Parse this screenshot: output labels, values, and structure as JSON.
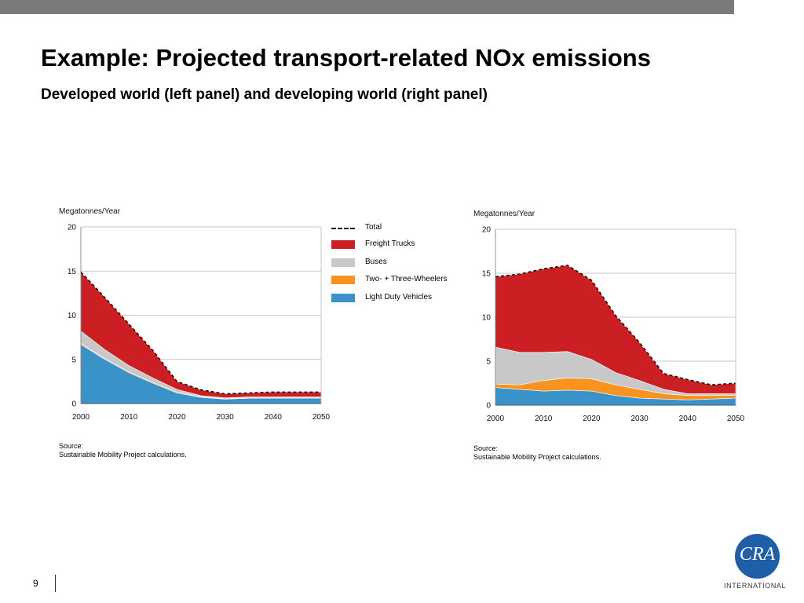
{
  "slide": {
    "title": "Example: Projected transport-related NOx emissions",
    "subtitle": "Developed world (left panel) and developing world (right panel)",
    "page_number": "9",
    "logo_mark": "CRA",
    "logo_caption": "INTERNATIONAL"
  },
  "legend": {
    "items": [
      {
        "label": "Total",
        "style": "dashed-line",
        "color": "#111111"
      },
      {
        "label": "Freight Trucks",
        "color": "#cc1f24"
      },
      {
        "label": "Buses",
        "color": "#c8c8c8"
      },
      {
        "label": "Two- + Three-Wheelers",
        "color": "#f7931e"
      },
      {
        "label": "Light Duty Vehicles",
        "color": "#3a93c8"
      }
    ]
  },
  "chart_data": [
    {
      "type": "area",
      "stacked": true,
      "ylabel": "Megatonnes/Year",
      "ylim": [
        0,
        20
      ],
      "yticks": [
        0,
        5,
        10,
        15,
        20
      ],
      "xlim": [
        2000,
        2050
      ],
      "xticks": [
        2000,
        2010,
        2020,
        2030,
        2040,
        2050
      ],
      "grid": true,
      "source": [
        "Source:",
        "Sustainable Mobility Project calculations."
      ],
      "x": [
        2000,
        2005,
        2010,
        2015,
        2020,
        2025,
        2030,
        2035,
        2040,
        2045,
        2050
      ],
      "series": [
        {
          "name": "Light Duty Vehicles",
          "values": [
            6.7,
            5.0,
            3.5,
            2.3,
            1.2,
            0.7,
            0.5,
            0.6,
            0.6,
            0.6,
            0.6
          ]
        },
        {
          "name": "Two- + Three-Wheelers",
          "values": [
            0.1,
            0.1,
            0.1,
            0.1,
            0.1,
            0.05,
            0.05,
            0.05,
            0.05,
            0.05,
            0.05
          ]
        },
        {
          "name": "Buses",
          "values": [
            1.4,
            1.0,
            0.7,
            0.5,
            0.3,
            0.15,
            0.1,
            0.1,
            0.1,
            0.1,
            0.1
          ]
        },
        {
          "name": "Freight Trucks",
          "values": [
            6.7,
            5.9,
            4.7,
            3.1,
            0.9,
            0.65,
            0.45,
            0.45,
            0.55,
            0.55,
            0.55
          ]
        }
      ],
      "total": [
        14.9,
        12.0,
        9.0,
        6.0,
        2.5,
        1.55,
        1.1,
        1.2,
        1.3,
        1.3,
        1.3
      ],
      "colors": {
        "Light Duty Vehicles": "#3a93c8",
        "Two- + Three-Wheelers": "#f7931e",
        "Buses": "#c8c8c8",
        "Freight Trucks": "#cc1f24"
      }
    },
    {
      "type": "area",
      "stacked": true,
      "ylabel": "Megatonnes/Year",
      "ylim": [
        0,
        20
      ],
      "yticks": [
        0,
        5,
        10,
        15,
        20
      ],
      "xlim": [
        2000,
        2050
      ],
      "xticks": [
        2000,
        2010,
        2020,
        2030,
        2040,
        2050
      ],
      "grid": true,
      "source": [
        "Source:",
        "Sustainable Mobility Project calculations."
      ],
      "x": [
        2000,
        2005,
        2010,
        2015,
        2020,
        2025,
        2030,
        2035,
        2040,
        2045,
        2050
      ],
      "series": [
        {
          "name": "Light Duty Vehicles",
          "values": [
            2.0,
            1.8,
            1.6,
            1.7,
            1.6,
            1.1,
            0.8,
            0.7,
            0.6,
            0.7,
            0.8
          ]
        },
        {
          "name": "Two- + Three-Wheelers",
          "values": [
            0.4,
            0.5,
            1.2,
            1.4,
            1.4,
            1.2,
            1.0,
            0.6,
            0.5,
            0.4,
            0.3
          ]
        },
        {
          "name": "Buses",
          "values": [
            4.2,
            3.7,
            3.2,
            3.0,
            2.2,
            1.4,
            1.0,
            0.5,
            0.2,
            0.2,
            0.2
          ]
        },
        {
          "name": "Freight Trucks",
          "values": [
            8.0,
            8.9,
            9.5,
            9.8,
            9.0,
            6.5,
            4.3,
            1.8,
            1.6,
            1.0,
            1.2
          ]
        }
      ],
      "total": [
        14.6,
        14.9,
        15.5,
        15.9,
        14.2,
        10.2,
        7.1,
        3.6,
        2.9,
        2.3,
        2.5
      ],
      "colors": {
        "Light Duty Vehicles": "#3a93c8",
        "Two- + Three-Wheelers": "#f7931e",
        "Buses": "#c8c8c8",
        "Freight Trucks": "#cc1f24"
      }
    }
  ]
}
